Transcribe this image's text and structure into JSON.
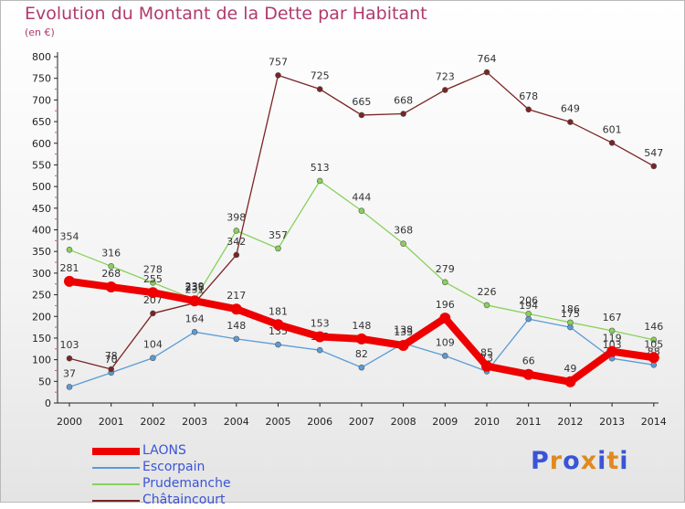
{
  "title": "Evolution du Montant de la Dette par Habitant",
  "subtitle": "(en €)",
  "logo": {
    "text": "Proxiti"
  },
  "chart_data": {
    "type": "line",
    "x": [
      "2000",
      "2001",
      "2002",
      "2003",
      "2004",
      "2005",
      "2006",
      "2007",
      "2008",
      "2009",
      "2010",
      "2011",
      "2012",
      "2013",
      "2014"
    ],
    "ylim": [
      0,
      800
    ],
    "yticks": [
      0,
      50,
      100,
      150,
      200,
      250,
      300,
      350,
      400,
      450,
      500,
      550,
      600,
      650,
      700,
      750,
      800
    ],
    "grid": false,
    "legend_position": "bottom-left",
    "series": [
      {
        "name": "LAONS",
        "color": "#ee0000",
        "highlight": true,
        "values": [
          281,
          268,
          255,
          236,
          217,
          181,
          153,
          148,
          133,
          196,
          85,
          66,
          49,
          119,
          105
        ],
        "labels": [
          "281",
          "268",
          "255",
          "236",
          "217",
          "181",
          "153",
          "148",
          "133",
          "196",
          "85",
          "66",
          "49",
          "119",
          "105"
        ]
      },
      {
        "name": "Escorpain",
        "color": "#5b9bd5",
        "values": [
          37,
          70,
          104,
          164,
          148,
          135,
          122,
          82,
          138,
          109,
          73,
          194,
          175,
          103,
          88
        ],
        "labels": [
          "37",
          "70",
          "104",
          "164",
          "148",
          "135",
          "122",
          "82",
          "138",
          "109",
          "73",
          "194",
          "175",
          "103",
          "88"
        ]
      },
      {
        "name": "Prudemanche",
        "color": "#88d15a",
        "values": [
          354,
          316,
          278,
          239,
          398,
          357,
          513,
          444,
          368,
          279,
          226,
          206,
          186,
          167,
          146
        ],
        "labels": [
          "354",
          "316",
          "278",
          "239",
          "398",
          "357",
          "513",
          "444",
          "368",
          "279",
          "226",
          "206",
          "186",
          "167",
          "146"
        ]
      },
      {
        "name": "Châtaincourt",
        "color": "#7a2424",
        "values": [
          103,
          78,
          207,
          231,
          342,
          757,
          725,
          665,
          668,
          723,
          764,
          678,
          649,
          601,
          547
        ],
        "labels": [
          "103",
          "78",
          "207",
          "231",
          "342",
          "757",
          "725",
          "665",
          "668",
          "723",
          "764",
          "678",
          "649",
          "601",
          "547"
        ]
      }
    ]
  }
}
